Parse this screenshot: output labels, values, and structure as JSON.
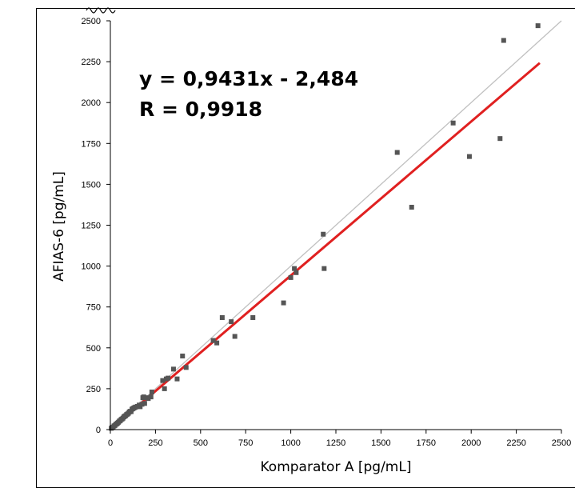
{
  "chart_data": {
    "type": "scatter",
    "title": "",
    "xlabel": "Komparator A [pg/mL]",
    "ylabel": "AFIAS-6 [pg/mL]",
    "xlim": [
      0,
      2500
    ],
    "ylim": [
      0,
      2500
    ],
    "x_ticks": [
      "0",
      "250",
      "500",
      "750",
      "1000",
      "1250",
      "1500",
      "1750",
      "2000",
      "2250",
      "2500"
    ],
    "y_ticks": [
      "0",
      "250",
      "500",
      "750",
      "1000",
      "1250",
      "1500",
      "1750",
      "2000",
      "2250",
      "2500"
    ],
    "grid": false,
    "annotations": {
      "equation": "y = 0,9431x - 2,484",
      "r_value": "R = 0,9918"
    },
    "regression": {
      "slope": 0.9431,
      "intercept": -2.484,
      "x_range": [
        0,
        2380
      ],
      "color": "#e02020"
    },
    "identity_line": {
      "x_range": [
        0,
        2500
      ],
      "color": "#c0c0c0"
    },
    "marker_color": "#555555",
    "points": [
      [
        5,
        8
      ],
      [
        10,
        12
      ],
      [
        15,
        15
      ],
      [
        20,
        22
      ],
      [
        25,
        25
      ],
      [
        30,
        32
      ],
      [
        35,
        35
      ],
      [
        40,
        40
      ],
      [
        45,
        45
      ],
      [
        50,
        52
      ],
      [
        55,
        55
      ],
      [
        60,
        62
      ],
      [
        65,
        65
      ],
      [
        70,
        70
      ],
      [
        75,
        78
      ],
      [
        80,
        82
      ],
      [
        85,
        85
      ],
      [
        90,
        92
      ],
      [
        95,
        95
      ],
      [
        100,
        100
      ],
      [
        105,
        108
      ],
      [
        110,
        112
      ],
      [
        115,
        110
      ],
      [
        120,
        125
      ],
      [
        125,
        128
      ],
      [
        130,
        132
      ],
      [
        135,
        135
      ],
      [
        140,
        138
      ],
      [
        150,
        142
      ],
      [
        160,
        150
      ],
      [
        165,
        140
      ],
      [
        175,
        155
      ],
      [
        180,
        195
      ],
      [
        185,
        200
      ],
      [
        190,
        160
      ],
      [
        200,
        195
      ],
      [
        210,
        190
      ],
      [
        225,
        200
      ],
      [
        230,
        230
      ],
      [
        290,
        300
      ],
      [
        300,
        250
      ],
      [
        310,
        310
      ],
      [
        320,
        315
      ],
      [
        350,
        370
      ],
      [
        370,
        310
      ],
      [
        400,
        450
      ],
      [
        420,
        380
      ],
      [
        570,
        545
      ],
      [
        590,
        530
      ],
      [
        620,
        685
      ],
      [
        670,
        660
      ],
      [
        690,
        570
      ],
      [
        790,
        685
      ],
      [
        960,
        775
      ],
      [
        1000,
        930
      ],
      [
        1020,
        985
      ],
      [
        1030,
        960
      ],
      [
        1180,
        1195
      ],
      [
        1185,
        985
      ],
      [
        1590,
        1695
      ],
      [
        1670,
        1360
      ],
      [
        1900,
        1875
      ],
      [
        1990,
        1670
      ],
      [
        2160,
        1780
      ],
      [
        2180,
        2380
      ],
      [
        2370,
        2470
      ]
    ]
  }
}
